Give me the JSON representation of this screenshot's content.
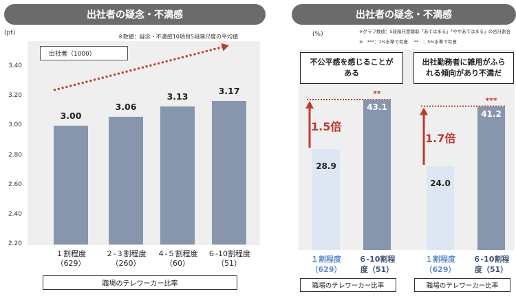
{
  "left": {
    "header": "出社者の疑念・不満感",
    "unit": "(pt)",
    "note": "※数値：疑念・不満感10項目5段階尺度の平均値",
    "legend": "出社者（1000）",
    "xaxis_label": "職場のテレワーカー比率"
  },
  "right": {
    "header": "出社者の疑念・不満感",
    "unit": "(%)",
    "note1": "※グラフ数値：5段階尺度聴取「あてはまる」「ややあてはまる」の合計割合",
    "note2": "※　***：1%水準で有意　 **　：5%水準で有意",
    "xaxis_label_1": "職場のテレワーカー比率",
    "xaxis_label_2": "職場のテレワーカー比率"
  },
  "colors": {
    "bar_dark": "#8796ad",
    "bar_light": "#dfe6f3",
    "accent_red": "#c0392b",
    "light_cat_text": "#5b8ccf",
    "dark_cat_text": "#3d4f74",
    "header_bg": "#6b6b6b"
  },
  "chart_data": [
    {
      "type": "bar",
      "title": "出社者の疑念・不満感",
      "ylabel": "(pt)",
      "xlabel": "職場のテレワーカー比率",
      "ylim": [
        2.2,
        3.4
      ],
      "yticks": [
        "3.40",
        "3.20",
        "3.00",
        "2.80",
        "2.60",
        "2.40",
        "2.20"
      ],
      "grid": false,
      "legend": "top-left",
      "categories": [
        {
          "line1": "１割程度",
          "line2": "（629）"
        },
        {
          "line1": "２-３割程度",
          "line2": "（260）"
        },
        {
          "line1": "４-５割程度",
          "line2": "（60）"
        },
        {
          "line1": "６-10割程度",
          "line2": "（51）"
        }
      ],
      "series": [
        {
          "name": "出社者（1000）",
          "values": [
            3.0,
            3.06,
            3.13,
            3.17
          ],
          "labels": [
            "3.00",
            "3.06",
            "3.13",
            "3.17"
          ]
        }
      ]
    },
    {
      "type": "bar",
      "title": "不公平感を感じることがある",
      "xlabel": "職場のテレワーカー比率",
      "multiplier": "1.5倍",
      "significance": "**",
      "categories": [
        {
          "line1": "１割程度",
          "line2": "（629）"
        },
        {
          "line1": "６-10割程",
          "line2": "度（51）"
        }
      ],
      "values": [
        28.9,
        43.1
      ],
      "labels": [
        "28.9",
        "43.1"
      ]
    },
    {
      "type": "bar",
      "title": "出社勤務者に雑用がふられる傾向があり不満だ",
      "xlabel": "職場のテレワーカー比率",
      "multiplier": "1.7倍",
      "significance": "***",
      "categories": [
        {
          "line1": "１割程度",
          "line2": "（629）"
        },
        {
          "line1": "６-10割程",
          "line2": "度（51）"
        }
      ],
      "values": [
        24.0,
        41.2
      ],
      "labels": [
        "24.0",
        "41.2"
      ]
    }
  ],
  "texts": {
    "q1_line1": "不公平感を感じることが",
    "q1_line2": "ある",
    "q2_line1": "出社勤務者に雑用がふら",
    "q2_line2": "れる傾向があり不満だ"
  }
}
